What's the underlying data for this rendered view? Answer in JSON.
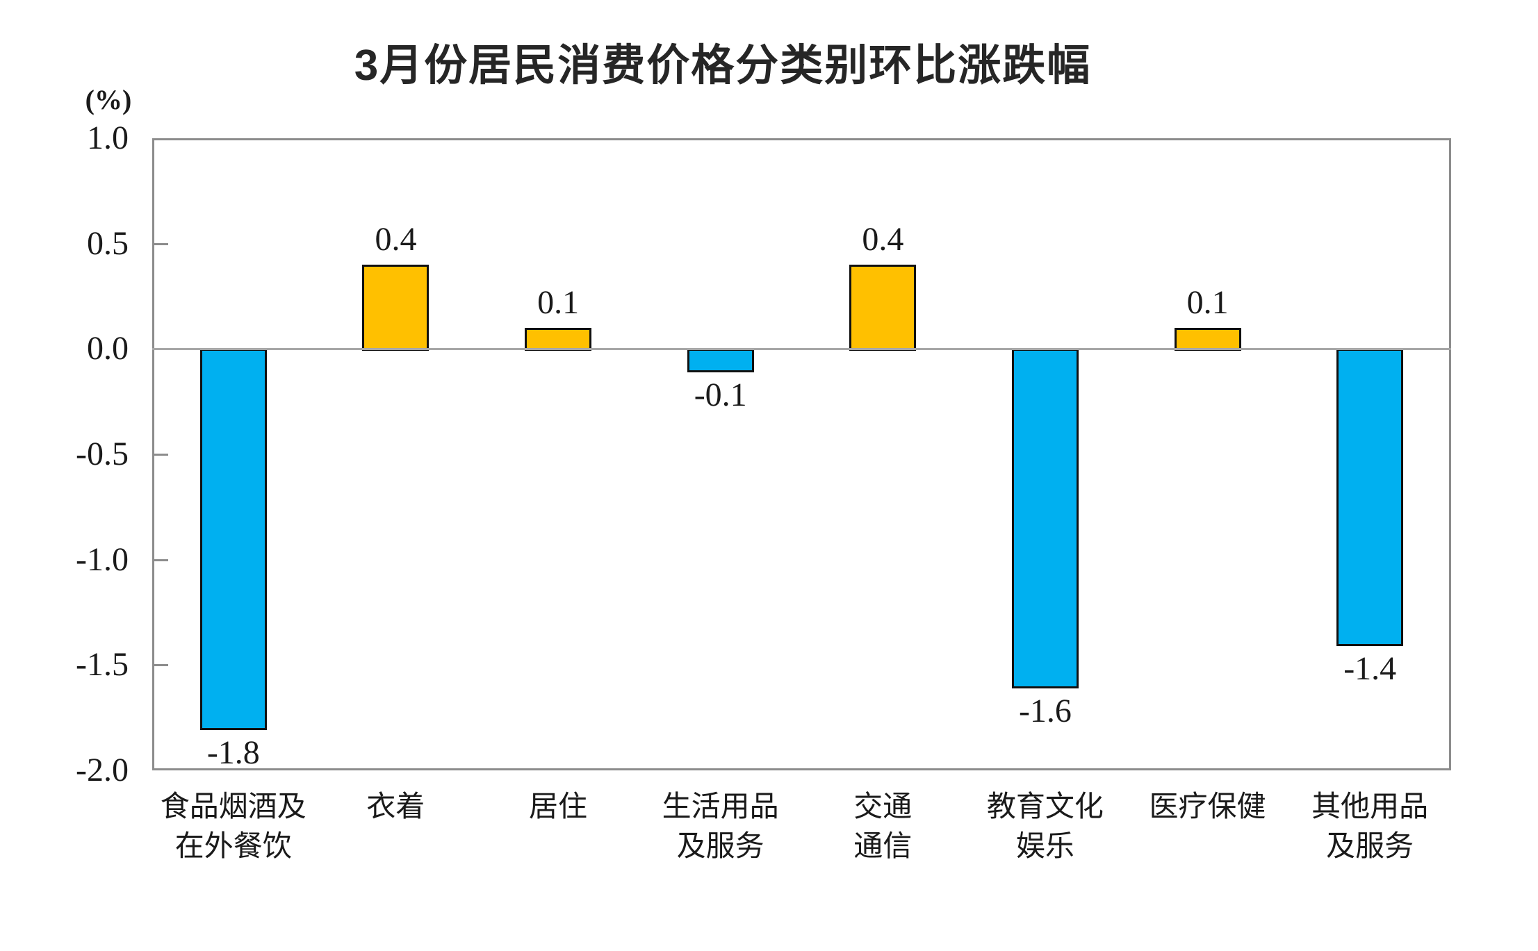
{
  "chart": {
    "title": "3月份居民消费价格分类别环比涨跌幅",
    "unit_label": "(%)"
  },
  "chart_data": {
    "type": "bar",
    "title": "3月份居民消费价格分类别环比涨跌幅",
    "ylabel": "(%)",
    "xlabel": "",
    "ylim": [
      -2.0,
      1.0
    ],
    "grid": false,
    "legend": false,
    "categories": [
      "食品烟酒及在外餐饮",
      "衣着",
      "居住",
      "生活用品及服务",
      "交通通信",
      "教育文化娱乐",
      "医疗保健",
      "其他用品及服务"
    ],
    "category_lines": [
      [
        "食品烟酒及",
        "在外餐饮"
      ],
      [
        "衣着"
      ],
      [
        "居住"
      ],
      [
        "生活用品",
        "及服务"
      ],
      [
        "交通",
        "通信"
      ],
      [
        "教育文化",
        "娱乐"
      ],
      [
        "医疗保健"
      ],
      [
        "其他用品",
        "及服务"
      ]
    ],
    "values": [
      -1.8,
      0.4,
      0.1,
      -0.1,
      0.4,
      -1.6,
      0.1,
      -1.4
    ],
    "value_labels": [
      "-1.8",
      "0.4",
      "0.1",
      "-0.1",
      "0.4",
      "-1.6",
      "0.1",
      "-1.4"
    ],
    "y_ticks": [
      1.0,
      0.5,
      0.0,
      -0.5,
      -1.0,
      -1.5,
      -2.0
    ],
    "y_tick_labels": [
      "1.0",
      "0.5",
      "0.0",
      "-0.5",
      "-1.0",
      "-1.5",
      "-2.0"
    ],
    "inner_tick_values": [
      0.5,
      -0.5,
      -1.0,
      -1.5
    ],
    "colors": {
      "positive_bar": "#FFC000",
      "negative_bar": "#00B0F0",
      "bar_border": "#111111",
      "frame": "#8C8C8C",
      "zero_line": "#A6A6A6",
      "text": "#1A1A1A"
    }
  }
}
